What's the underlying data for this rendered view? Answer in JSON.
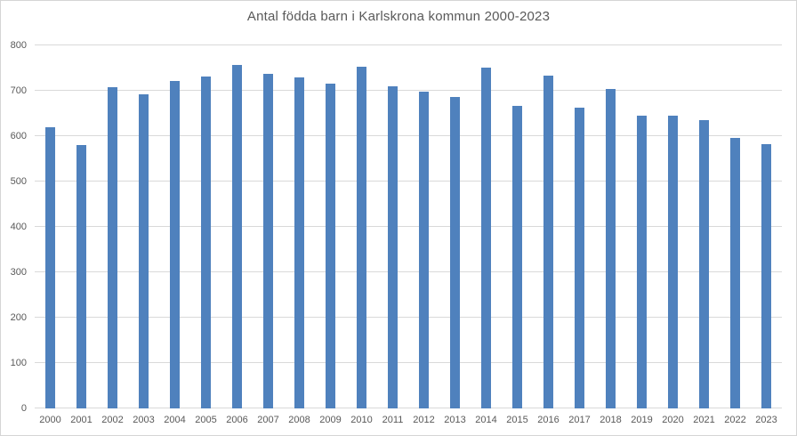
{
  "chart": {
    "title": "Antal födda barn i Karlskrona kommun 2000-2023"
  },
  "chart_data": {
    "type": "bar",
    "title": "Antal födda barn i Karlskrona kommun 2000-2023",
    "categories": [
      "2000",
      "2001",
      "2002",
      "2003",
      "2004",
      "2005",
      "2006",
      "2007",
      "2008",
      "2009",
      "2010",
      "2011",
      "2012",
      "2013",
      "2014",
      "2015",
      "2016",
      "2017",
      "2018",
      "2019",
      "2020",
      "2021",
      "2022",
      "2023"
    ],
    "values": [
      620,
      581,
      707,
      692,
      722,
      731,
      757,
      737,
      729,
      715,
      752,
      709,
      698,
      686,
      751,
      667,
      734,
      663,
      704,
      646,
      645,
      636,
      596,
      583
    ],
    "xlabel": "",
    "ylabel": "",
    "ylim": [
      0,
      800
    ],
    "y_ticks": [
      800,
      700,
      600,
      500,
      400,
      300,
      200,
      100,
      0
    ],
    "grid": true,
    "legend": false,
    "bar_color": "#4f81bd",
    "text_color": "#595959",
    "gridline_color": "#d9d9d9"
  }
}
